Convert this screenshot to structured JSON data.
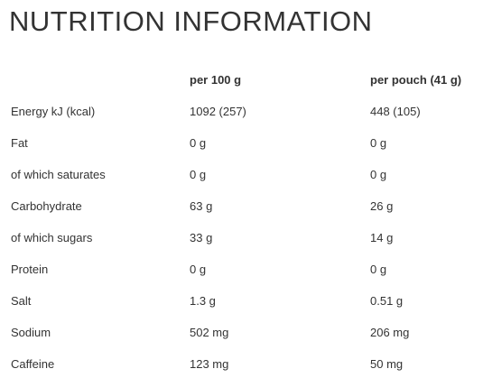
{
  "title": "NUTRITION INFORMATION",
  "table": {
    "headers": [
      "",
      "per 100 g",
      "per pouch (41 g)"
    ],
    "rows": [
      {
        "label": "Energy kJ (kcal)",
        "per100": "1092 (257)",
        "pouch": "448 (105)"
      },
      {
        "label": "Fat",
        "per100": "0 g",
        "pouch": "0 g"
      },
      {
        "label": "of which saturates",
        "per100": "0 g",
        "pouch": "0 g"
      },
      {
        "label": "Carbohydrate",
        "per100": "63 g",
        "pouch": "26 g"
      },
      {
        "label": "of which sugars",
        "per100": "33 g",
        "pouch": "14 g"
      },
      {
        "label": "Protein",
        "per100": "0 g",
        "pouch": "0 g"
      },
      {
        "label": "Salt",
        "per100": "1.3 g",
        "pouch": "0.51 g"
      },
      {
        "label": "Sodium",
        "per100": "502 mg",
        "pouch": "206 mg"
      },
      {
        "label": "Caffeine",
        "per100": "123 mg",
        "pouch": "50 mg"
      }
    ]
  }
}
